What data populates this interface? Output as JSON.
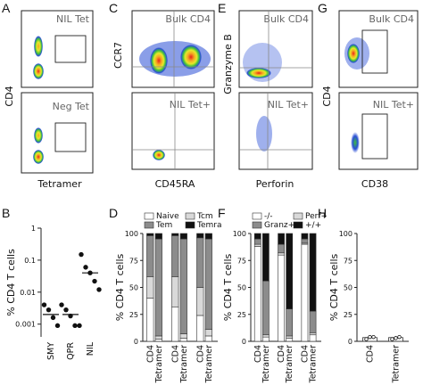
{
  "panel_letters": [
    "A",
    "B",
    "C",
    "D",
    "E",
    "F",
    "G",
    "H"
  ],
  "flow_panels": {
    "A": {
      "ylabel": "CD4",
      "xlabel": "Tetramer",
      "top_title": "NIL Tet",
      "bottom_title": "Neg Tet"
    },
    "C": {
      "ylabel": "CCR7",
      "xlabel": "CD45RA",
      "top_title": "Bulk CD4",
      "bottom_title": "NIL Tet+"
    },
    "E": {
      "ylabel": "Granzyme B",
      "xlabel": "Perforin",
      "top_title": "Bulk CD4",
      "bottom_title": "NIL Tet+"
    },
    "G": {
      "ylabel": "CD4",
      "xlabel": "CD38",
      "top_title": "Bulk CD4",
      "bottom_title": "NIL Tet+"
    }
  },
  "chart_data": [
    {
      "panel": "B",
      "type": "scatter",
      "ylabel": "% CD4 T cells",
      "yscale": "log",
      "ylim": [
        0.0004,
        1
      ],
      "yticks": [
        "1",
        "0.1",
        "0.01",
        "0.001"
      ],
      "ytick_values": [
        1,
        0.1,
        0.01,
        0.001
      ],
      "categories": [
        "SMY",
        "QPR",
        "NIL"
      ],
      "points": [
        [
          0.004,
          0.0028,
          0.0016,
          0.0009
        ],
        [
          0.004,
          0.0028,
          0.0018,
          0.0009,
          0.0009
        ],
        [
          0.15,
          0.06,
          0.04,
          0.022,
          0.012
        ]
      ],
      "medians": [
        0.002,
        0.002,
        0.04
      ]
    },
    {
      "panel": "D",
      "type": "bar",
      "stacked": true,
      "ylabel": "% CD4 T cells",
      "ylim": [
        0,
        100
      ],
      "yticks": [
        "0",
        "25",
        "50",
        "75",
        "100"
      ],
      "legend": [
        "Naive",
        "Tcm",
        "Tem",
        "Temra"
      ],
      "colors": {
        "Naive": "#ffffff",
        "Tcm": "#d9d9d9",
        "Tem": "#8c8c8c",
        "Temra": "#111111"
      },
      "categories": [
        "CD4",
        "Tetramer",
        "CD4",
        "Tetramer",
        "CD4",
        "Tetramer"
      ],
      "series": [
        {
          "name": "Naive",
          "values": [
            40,
            2,
            32,
            3,
            24,
            5
          ]
        },
        {
          "name": "Tcm",
          "values": [
            20,
            3,
            28,
            4,
            26,
            6
          ]
        },
        {
          "name": "Tem",
          "values": [
            38,
            90,
            38,
            88,
            46,
            84
          ]
        },
        {
          "name": "Temra",
          "values": [
            2,
            5,
            2,
            5,
            4,
            5
          ]
        }
      ]
    },
    {
      "panel": "F",
      "type": "bar",
      "stacked": true,
      "ylabel": "% CD4 T cells",
      "ylim": [
        0,
        100
      ],
      "yticks": [
        "0",
        "25",
        "50",
        "75",
        "100"
      ],
      "legend": [
        "-/-",
        "Perf+",
        "Granz+",
        "+/+"
      ],
      "colors": {
        "-/-": "#ffffff",
        "Perf+": "#d9d9d9",
        "Granz+": "#8c8c8c",
        "+/+": "#111111"
      },
      "categories": [
        "CD4",
        "Tetramer",
        "CD4",
        "Tetramer",
        "CD4",
        "Tetramer"
      ],
      "series": [
        {
          "name": "-/-",
          "values": [
            88,
            4,
            80,
            3,
            90,
            6
          ]
        },
        {
          "name": "Perf+",
          "values": [
            2,
            2,
            2,
            2,
            1,
            2
          ]
        },
        {
          "name": "Granz+",
          "values": [
            5,
            50,
            8,
            25,
            4,
            20
          ]
        },
        {
          "name": "+/+",
          "values": [
            5,
            44,
            10,
            70,
            5,
            72
          ]
        }
      ]
    },
    {
      "panel": "H",
      "type": "bar",
      "ylabel": "% CD4 T cells",
      "ylim": [
        0,
        100
      ],
      "yticks": [
        "0",
        "25",
        "50",
        "75",
        "100"
      ],
      "categories": [
        "CD4",
        "Tetramer"
      ],
      "values": [
        3.5,
        3.5
      ],
      "points": [
        [
          2,
          4,
          4
        ],
        [
          2,
          3,
          4
        ]
      ]
    }
  ]
}
